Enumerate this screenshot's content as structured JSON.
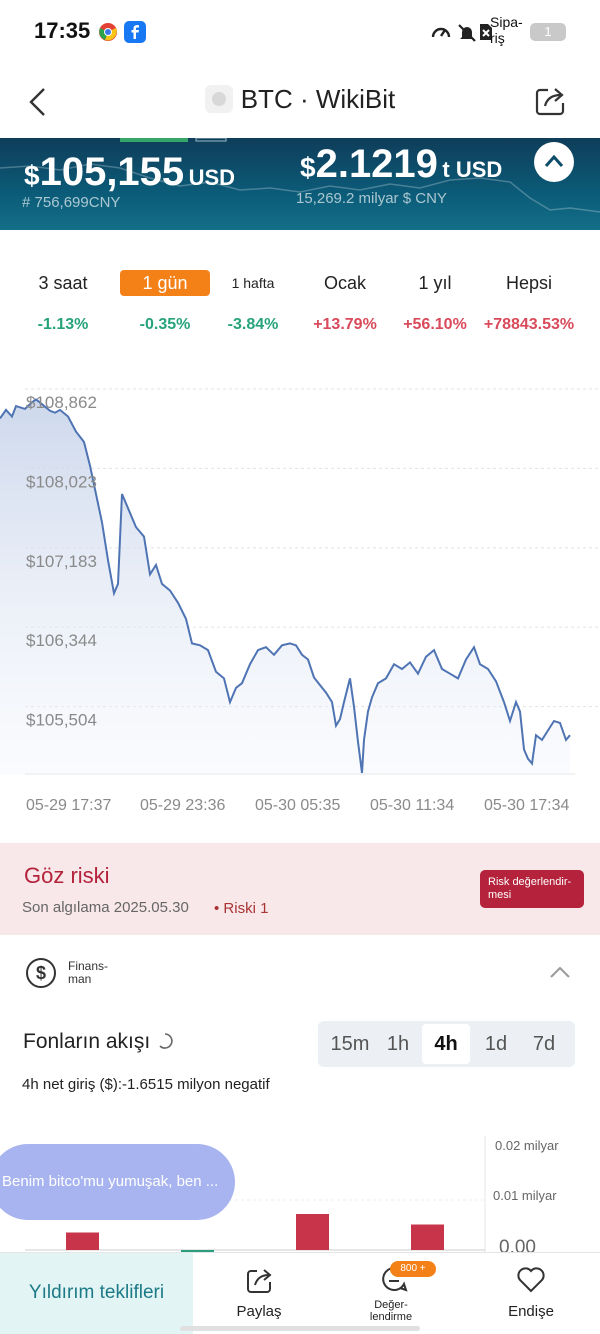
{
  "status_bar": {
    "time": "17:35",
    "label": "Sipa-\nriş",
    "battery": "1"
  },
  "nav": {
    "title": "BTC · WikiBit"
  },
  "hero": {
    "price_symbol": "$",
    "price": "105,155",
    "price_unit": "USD",
    "cny": "# 756,699CNY",
    "mcap_symbol": "$",
    "mcap": "2.1219",
    "mcap_unit": "t USD",
    "mcap_cny": "15,269.2 milyar $ CNY"
  },
  "periods": [
    {
      "label": "3 saat",
      "change": "-1.13%",
      "dir": "down"
    },
    {
      "label": "1 gün",
      "change": "-0.35%",
      "dir": "down"
    },
    {
      "label": "1 hafta",
      "change": "-3.84%",
      "dir": "down"
    },
    {
      "label": "Ocak",
      "change": "+13.79%",
      "dir": "up"
    },
    {
      "label": "1 yıl",
      "change": "+56.10%",
      "dir": "up"
    },
    {
      "label": "Hepsi",
      "change": "+78843.53%",
      "dir": "up"
    }
  ],
  "active_period": 1,
  "colors": {
    "down": "#27a37c",
    "up": "#d94a5b",
    "line": "#4f74b3",
    "accent": "#f48118",
    "risk": "#b4223b"
  },
  "chart_data": {
    "type": "line",
    "yticks": [
      "$108,862",
      "$108,023",
      "$107,183",
      "$106,344",
      "$105,504"
    ],
    "ytick_values": [
      108862,
      108023,
      107183,
      106344,
      105504
    ],
    "xticks": [
      "05-29 17:37",
      "05-29 23:36",
      "05-30 05:35",
      "05-30 11:34",
      "05-30 17:34"
    ],
    "x": [
      0,
      6,
      12,
      16,
      25,
      32,
      36,
      42,
      50,
      55,
      60,
      68,
      76,
      84,
      90,
      96,
      102,
      108,
      114,
      118,
      122,
      128,
      136,
      144,
      150,
      156,
      162,
      170,
      178,
      186,
      192,
      200,
      208,
      216,
      224,
      230,
      236,
      242,
      250,
      258,
      266,
      274,
      282,
      290,
      296,
      302,
      308,
      314,
      320,
      326,
      332,
      336,
      340,
      344,
      350,
      354,
      358,
      362,
      364,
      368,
      372,
      378,
      386,
      394,
      402,
      410,
      418,
      426,
      434,
      442,
      450,
      458,
      466,
      474,
      480,
      488,
      496,
      504,
      510,
      516,
      520,
      524,
      528,
      532,
      536,
      542,
      548,
      554,
      560,
      566,
      570
    ],
    "y": [
      108700,
      108790,
      108720,
      108830,
      108800,
      108870,
      108900,
      108850,
      108780,
      108760,
      108790,
      108720,
      108560,
      108450,
      108200,
      107900,
      107600,
      107200,
      106850,
      106950,
      107900,
      107750,
      107550,
      107450,
      107050,
      107150,
      106950,
      106880,
      106750,
      106580,
      106320,
      106300,
      106250,
      106020,
      105950,
      105700,
      105850,
      105900,
      106100,
      106250,
      106280,
      106200,
      106300,
      106320,
      106300,
      106200,
      106150,
      105960,
      105880,
      105800,
      105700,
      105450,
      105520,
      105700,
      105950,
      105650,
      105280,
      104950,
      105300,
      105600,
      105750,
      105900,
      105950,
      106100,
      106050,
      106120,
      106000,
      106180,
      106250,
      106050,
      106000,
      105950,
      106150,
      106280,
      106100,
      106050,
      105920,
      105700,
      105500,
      105700,
      105600,
      105200,
      105100,
      105050,
      105350,
      105300,
      105400,
      105500,
      105480,
      105300,
      105350
    ],
    "ylim": [
      104950,
      109000
    ],
    "xlim": [
      0,
      575
    ],
    "grid": true
  },
  "risk": {
    "title": "Göz riski",
    "date": "Son algılama 2025.05.30",
    "level": "• Riski 1",
    "button": "Risk değerlendir-\nmesi"
  },
  "finance": {
    "label": "Finans-\nman"
  },
  "flow": {
    "title": "Fonların akışı",
    "segments": [
      "15m",
      "1h",
      "4h",
      "1d",
      "7d"
    ],
    "active_segment": 2,
    "net": "4h net giriş ($):-1.6515 milyon negatif",
    "axis": [
      "0.02 milyar",
      "0.01 milyar",
      "0.00"
    ],
    "bars": [
      0.0035,
      -0.0004,
      0.0072,
      0.0051
    ]
  },
  "toast": "Benim bitco'mu yumuşak, ben ...",
  "bottom_bar": {
    "hot": "Yıldırım teklifleri",
    "share": "Paylaş",
    "rate": "Değer-\nlendirme",
    "rate_badge": "800 +",
    "follow": "Endişe"
  }
}
